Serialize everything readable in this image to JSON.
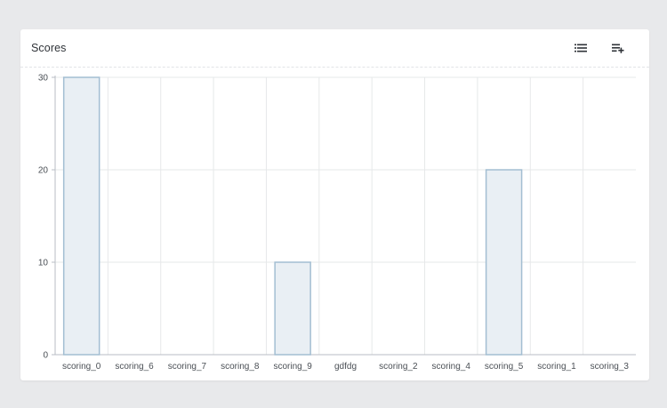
{
  "card": {
    "title": "Scores"
  },
  "icons": {
    "list": "list-icon",
    "add": "playlist-add-icon"
  },
  "colors": {
    "background": "#e8e9eb",
    "bar_fill": "#e9eff4",
    "bar_stroke": "#a3bed2",
    "grid": "#e6e8ea",
    "axis": "#b9bec4"
  },
  "chart_data": {
    "type": "bar",
    "title": "Scores",
    "categories": [
      "scoring_0",
      "scoring_6",
      "scoring_7",
      "scoring_8",
      "scoring_9",
      "gdfdg",
      "scoring_2",
      "scoring_4",
      "scoring_5",
      "scoring_1",
      "scoring_3"
    ],
    "values": [
      30,
      0,
      0,
      0,
      10,
      0,
      0,
      0,
      20,
      0,
      0
    ],
    "yticks": [
      0,
      10,
      20,
      30
    ],
    "ylim": [
      0,
      30
    ],
    "xlabel": "",
    "ylabel": "",
    "grid": true,
    "legend": "none"
  }
}
